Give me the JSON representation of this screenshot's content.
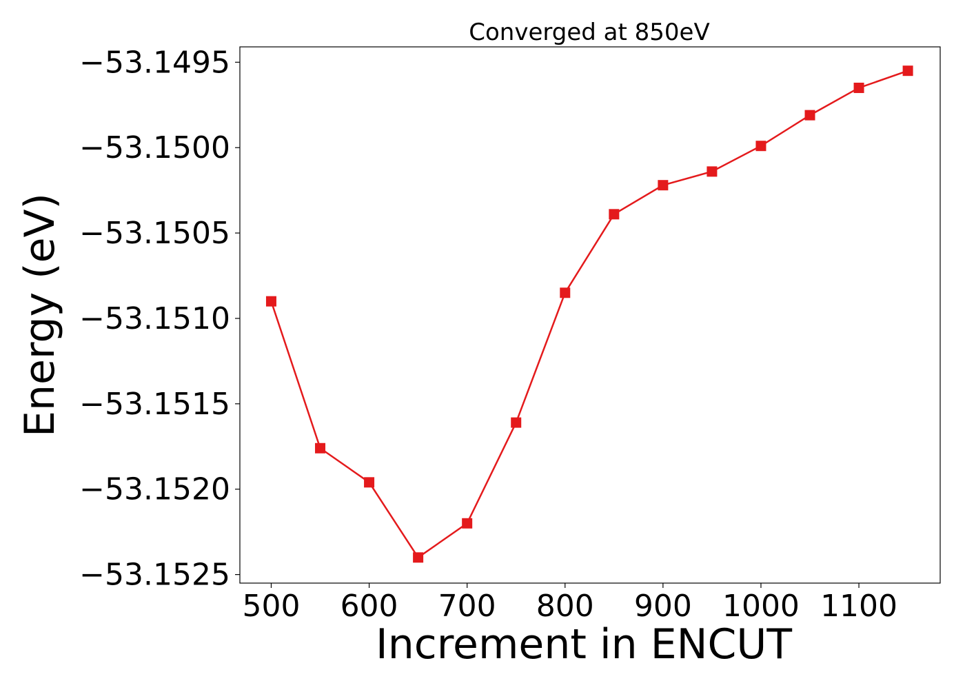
{
  "chart_data": {
    "type": "line",
    "title": "Converged at 850eV",
    "xlabel": "Increment in ENCUT",
    "ylabel": "Energy (eV)",
    "x": [
      500,
      550,
      600,
      650,
      700,
      750,
      800,
      850,
      900,
      950,
      1000,
      1050,
      1100,
      1150
    ],
    "series": [
      {
        "values": [
          -53.1509,
          -53.15176,
          -53.15196,
          -53.1524,
          -53.1522,
          -53.15161,
          -53.15085,
          -53.15039,
          -53.15022,
          -53.15014,
          -53.14999,
          -53.14981,
          -53.14965,
          -53.14955
        ],
        "color": "#e41a1c",
        "marker": "square"
      }
    ],
    "xlim": [
      468,
      1183
    ],
    "ylim": [
      -53.15255,
      -53.14941
    ],
    "x_ticks": [
      500,
      600,
      700,
      800,
      900,
      1000,
      1100
    ],
    "x_tick_labels": [
      "500",
      "600",
      "700",
      "800",
      "900",
      "1000",
      "1100"
    ],
    "y_ticks": [
      -53.1525,
      -53.152,
      -53.1515,
      -53.151,
      -53.1505,
      -53.15,
      -53.1495
    ],
    "y_tick_labels": [
      "−53.1525",
      "−53.1520",
      "−53.1515",
      "−53.1510",
      "−53.1505",
      "−53.1500",
      "−53.1495"
    ],
    "grid": false,
    "legend": "none"
  }
}
